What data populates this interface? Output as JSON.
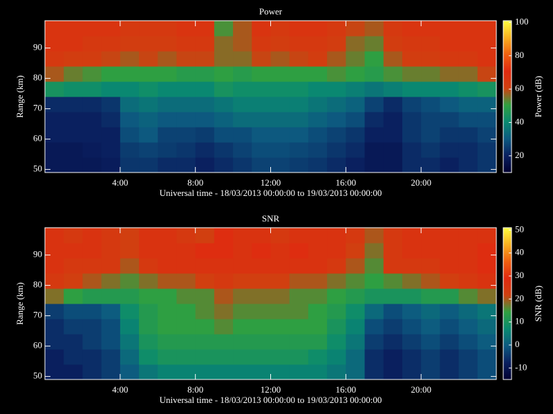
{
  "chart_data": [
    {
      "type": "heatmap",
      "title": "Power",
      "xlabel": "Universal time - 18/03/2013 00:00:00 to 19/03/2013 00:00:00",
      "ylabel": "Range (km)",
      "zlabel": "Power (dB)",
      "xlim": [
        0,
        24
      ],
      "xticks": [
        {
          "value": 4,
          "label": "4:00"
        },
        {
          "value": 8,
          "label": "8:00"
        },
        {
          "value": 12,
          "label": "12:00"
        },
        {
          "value": 16,
          "label": "16:00"
        },
        {
          "value": 20,
          "label": "20:00"
        }
      ],
      "ylim": [
        49,
        99
      ],
      "yticks": [
        50,
        60,
        70,
        80,
        90
      ],
      "zlim": [
        10,
        101
      ],
      "zticks": [
        20,
        40,
        60,
        80,
        100
      ],
      "colormap": [
        "#000030",
        "#0a2060",
        "#0d5a80",
        "#0a8a70",
        "#30a040",
        "#d04010",
        "#e02a10",
        "#f06010",
        "#f8b020",
        "#ffff40"
      ],
      "x_bins": [
        0,
        1,
        2,
        3,
        4,
        5,
        6,
        7,
        8,
        9,
        10,
        11,
        12,
        13,
        14,
        15,
        16,
        17,
        18,
        19,
        20,
        21,
        22,
        23,
        24
      ],
      "y_bins": [
        49,
        54,
        59,
        64,
        69,
        74,
        79,
        84,
        89,
        94,
        99
      ],
      "z": [
        [
          18,
          18,
          18,
          19,
          24,
          24,
          22,
          22,
          20,
          22,
          24,
          26,
          26,
          25,
          24,
          22,
          20,
          18,
          18,
          22,
          22,
          20,
          22,
          24
        ],
        [
          18,
          18,
          19,
          20,
          25,
          26,
          25,
          24,
          22,
          24,
          26,
          28,
          28,
          27,
          26,
          24,
          22,
          18,
          18,
          22,
          24,
          22,
          22,
          24
        ],
        [
          20,
          20,
          20,
          20,
          28,
          30,
          26,
          26,
          25,
          28,
          28,
          30,
          30,
          30,
          28,
          26,
          24,
          20,
          20,
          24,
          26,
          24,
          24,
          26
        ],
        [
          20,
          20,
          20,
          22,
          30,
          32,
          30,
          30,
          30,
          32,
          34,
          34,
          34,
          34,
          32,
          30,
          28,
          22,
          20,
          24,
          26,
          26,
          28,
          28
        ],
        [
          22,
          22,
          22,
          24,
          34,
          36,
          34,
          34,
          34,
          36,
          38,
          38,
          38,
          38,
          36,
          34,
          32,
          26,
          22,
          26,
          28,
          30,
          32,
          32
        ],
        [
          44,
          42,
          42,
          40,
          40,
          42,
          40,
          40,
          40,
          44,
          42,
          42,
          42,
          42,
          40,
          40,
          38,
          36,
          38,
          40,
          40,
          40,
          42,
          44
        ],
        [
          58,
          54,
          52,
          50,
          50,
          50,
          50,
          48,
          48,
          50,
          48,
          50,
          50,
          50,
          50,
          52,
          50,
          48,
          52,
          54,
          54,
          56,
          56,
          60
        ],
        [
          64,
          62,
          62,
          60,
          58,
          60,
          58,
          60,
          60,
          56,
          56,
          60,
          58,
          60,
          62,
          58,
          54,
          50,
          58,
          62,
          62,
          64,
          64,
          66
        ],
        [
          66,
          66,
          64,
          64,
          62,
          62,
          62,
          64,
          64,
          56,
          58,
          64,
          62,
          64,
          64,
          62,
          56,
          54,
          62,
          64,
          64,
          66,
          66,
          66
        ],
        [
          66,
          66,
          66,
          66,
          64,
          64,
          64,
          66,
          66,
          52,
          58,
          66,
          64,
          66,
          66,
          64,
          60,
          58,
          64,
          66,
          66,
          66,
          66,
          66
        ]
      ]
    },
    {
      "type": "heatmap",
      "title": "SNR",
      "xlabel": "Universal time - 18/03/2013 00:00:00 to 19/03/2013 00:00:00",
      "ylabel": "Range (km)",
      "zlabel": "SNR (dB)",
      "xlim": [
        0,
        24
      ],
      "xticks": [
        {
          "value": 4,
          "label": "4:00"
        },
        {
          "value": 8,
          "label": "8:00"
        },
        {
          "value": 12,
          "label": "12:00"
        },
        {
          "value": 16,
          "label": "16:00"
        },
        {
          "value": 20,
          "label": "20:00"
        }
      ],
      "ylim": [
        49,
        99
      ],
      "yticks": [
        50,
        60,
        70,
        80,
        90
      ],
      "zlim": [
        -15,
        51
      ],
      "zticks": [
        -10,
        0,
        10,
        20,
        30,
        40,
        50
      ],
      "colormap": [
        "#000030",
        "#0a2060",
        "#0d5a80",
        "#0a8a70",
        "#30a040",
        "#d04010",
        "#e02a10",
        "#f06010",
        "#f8b020",
        "#ffff40"
      ],
      "x_bins": [
        0,
        1,
        2,
        3,
        4,
        5,
        6,
        7,
        8,
        9,
        10,
        11,
        12,
        13,
        14,
        15,
        16,
        17,
        18,
        19,
        20,
        21,
        22,
        23,
        24
      ],
      "y_bins": [
        49,
        54,
        59,
        64,
        69,
        74,
        79,
        84,
        89,
        94,
        99
      ],
      "z": [
        [
          -8,
          -8,
          -6,
          -4,
          0,
          4,
          6,
          6,
          6,
          6,
          6,
          6,
          6,
          6,
          6,
          4,
          2,
          -6,
          -8,
          -6,
          -4,
          -6,
          -4,
          -2
        ],
        [
          -8,
          -6,
          -6,
          -4,
          2,
          8,
          10,
          10,
          10,
          10,
          10,
          10,
          10,
          10,
          8,
          6,
          2,
          -6,
          -8,
          -6,
          -4,
          -6,
          -4,
          -2
        ],
        [
          -6,
          -6,
          -4,
          -2,
          4,
          10,
          12,
          12,
          12,
          12,
          12,
          12,
          12,
          12,
          12,
          8,
          4,
          -4,
          -6,
          -4,
          -2,
          -4,
          -2,
          0
        ],
        [
          -6,
          -4,
          -4,
          -2,
          6,
          12,
          14,
          14,
          14,
          16,
          14,
          14,
          14,
          14,
          14,
          10,
          6,
          -2,
          -4,
          -2,
          0,
          -2,
          0,
          2
        ],
        [
          -4,
          -2,
          -2,
          0,
          8,
          12,
          14,
          14,
          16,
          18,
          16,
          16,
          16,
          16,
          14,
          12,
          8,
          2,
          -2,
          0,
          2,
          0,
          2,
          4
        ],
        [
          18,
          14,
          12,
          12,
          12,
          14,
          14,
          16,
          16,
          20,
          18,
          18,
          18,
          16,
          16,
          14,
          12,
          10,
          10,
          10,
          12,
          12,
          16,
          18
        ],
        [
          24,
          22,
          20,
          18,
          16,
          18,
          20,
          20,
          22,
          24,
          22,
          22,
          22,
          20,
          20,
          18,
          16,
          14,
          16,
          18,
          20,
          22,
          24,
          26
        ],
        [
          26,
          24,
          24,
          24,
          20,
          24,
          26,
          26,
          26,
          26,
          26,
          26,
          26,
          26,
          26,
          24,
          20,
          16,
          24,
          24,
          24,
          26,
          26,
          28
        ],
        [
          26,
          26,
          26,
          24,
          22,
          26,
          26,
          26,
          28,
          28,
          26,
          28,
          26,
          28,
          26,
          26,
          22,
          18,
          24,
          26,
          26,
          26,
          26,
          28
        ],
        [
          26,
          24,
          26,
          24,
          22,
          26,
          26,
          24,
          22,
          28,
          26,
          26,
          24,
          26,
          26,
          26,
          24,
          20,
          24,
          26,
          26,
          26,
          26,
          26
        ]
      ]
    }
  ]
}
